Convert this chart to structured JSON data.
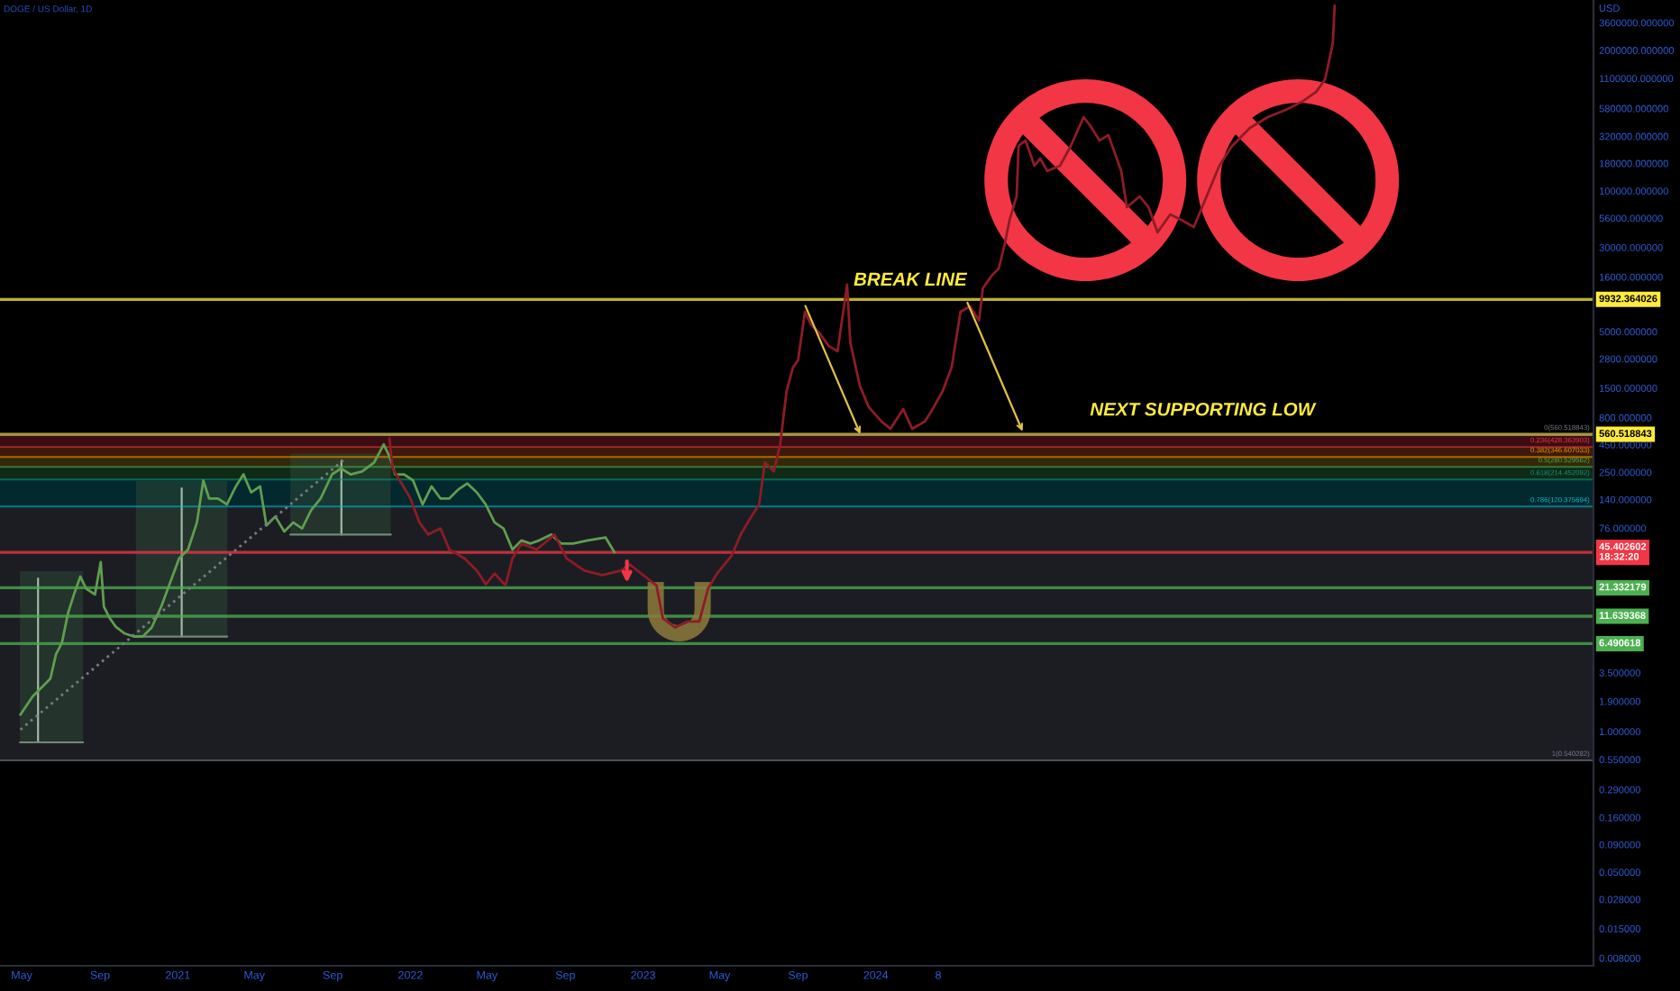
{
  "chart_data": {
    "type": "line",
    "title": "DOGE / US Dollar, 1D",
    "ylabel": "USD",
    "log": true,
    "xlim": [
      "2020-03-28",
      "2027-01-31"
    ],
    "xticks": [
      {
        "value": "2020-05-01",
        "label": "May"
      },
      {
        "value": "2020-09-01",
        "label": "Sep"
      },
      {
        "value": "2021-01-01",
        "label": "2021"
      },
      {
        "value": "2021-05-01",
        "label": "May"
      },
      {
        "value": "2021-09-01",
        "label": "Sep"
      },
      {
        "value": "2022-01-01",
        "label": "2022"
      },
      {
        "value": "2022-05-01",
        "label": "May"
      },
      {
        "value": "2022-09-01",
        "label": "Sep"
      },
      {
        "value": "2023-01-01",
        "label": "2023"
      },
      {
        "value": "2023-05-01",
        "label": "May"
      },
      {
        "value": "2023-09-01",
        "label": "Sep"
      },
      {
        "value": "2024-01-01",
        "label": "2024"
      },
      {
        "value": "2024-04-08",
        "label": "8"
      }
    ],
    "ylim": [
      0.0068,
      5840000
    ],
    "yticks": [
      {
        "value": 3600000,
        "label": "3600000.000000"
      },
      {
        "value": 2000000,
        "label": "2000000.000000"
      },
      {
        "value": 1100000,
        "label": "1100000.000000"
      },
      {
        "value": 580000,
        "label": "580000.000000"
      },
      {
        "value": 320000,
        "label": "320000.000000"
      },
      {
        "value": 180000,
        "label": "180000.000000"
      },
      {
        "value": 100000,
        "label": "100000.000000"
      },
      {
        "value": 56000,
        "label": "56000.000000"
      },
      {
        "value": 30000,
        "label": "30000.000000"
      },
      {
        "value": 16000,
        "label": "16000.000000"
      },
      {
        "value": 5000,
        "label": "5000.000000"
      },
      {
        "value": 2800,
        "label": "2800.000000"
      },
      {
        "value": 1500,
        "label": "1500.000000"
      },
      {
        "value": 800,
        "label": "800.000000"
      },
      {
        "value": 450,
        "label": "450.000000"
      },
      {
        "value": 250,
        "label": "250.000000"
      },
      {
        "value": 140,
        "label": "140.000000"
      },
      {
        "value": 76,
        "label": "76.000000"
      },
      {
        "value": 3.5,
        "label": "3.500000"
      },
      {
        "value": 1.9,
        "label": "1.900000"
      },
      {
        "value": 1,
        "label": "1.000000"
      },
      {
        "value": 0.55,
        "label": "0.550000"
      },
      {
        "value": 0.29,
        "label": "0.290000"
      },
      {
        "value": 0.16,
        "label": "0.160000"
      },
      {
        "value": 0.09,
        "label": "0.090000"
      },
      {
        "value": 0.05,
        "label": "0.050000"
      },
      {
        "value": 0.028,
        "label": "0.028000"
      },
      {
        "value": 0.015,
        "label": "0.015000"
      },
      {
        "value": 0.008,
        "label": "0.008000"
      }
    ],
    "series": [
      {
        "color": "#5f9e4f",
        "x": [
          "2020-04-29",
          "2020-05-18",
          "2020-06-01",
          "2020-06-15",
          "2020-06-24",
          "2020-07-03",
          "2020-07-13",
          "2020-07-22",
          "2020-08-01",
          "2020-08-10",
          "2020-08-24",
          "2020-09-02",
          "2020-09-07",
          "2020-09-16",
          "2020-09-26",
          "2020-10-10",
          "2020-10-24",
          "2020-11-07",
          "2020-11-21",
          "2020-12-06",
          "2020-12-20",
          "2021-01-03",
          "2021-01-17",
          "2021-01-31",
          "2021-02-10",
          "2021-02-19",
          "2021-03-05",
          "2021-03-19",
          "2021-04-02",
          "2021-04-14",
          "2021-04-26",
          "2021-05-10",
          "2021-05-20",
          "2021-06-03",
          "2021-06-17",
          "2021-07-01",
          "2021-07-15",
          "2021-07-29",
          "2021-08-13",
          "2021-08-31",
          "2021-09-14",
          "2021-09-29",
          "2021-10-17",
          "2021-11-05",
          "2021-11-20",
          "2021-11-29",
          "2021-12-08",
          "2021-12-22",
          "2022-01-05",
          "2022-01-20",
          "2022-02-03",
          "2022-02-17",
          "2022-03-03",
          "2022-03-17",
          "2022-03-31",
          "2022-04-15",
          "2022-04-29",
          "2022-05-13",
          "2022-05-27",
          "2022-06-10",
          "2022-06-24",
          "2022-07-08",
          "2022-07-22",
          "2022-08-10",
          "2022-08-25",
          "2022-09-13",
          "2022-10-06",
          "2022-11-03",
          "2022-11-17"
        ],
        "values": [
          1.43,
          2.1,
          2.54,
          3.08,
          5.21,
          6.56,
          12.6,
          18.5,
          27.1,
          21.0,
          18.5,
          36.9,
          14.3,
          11.2,
          9.26,
          8.04,
          7.56,
          7.56,
          9.16,
          14.3,
          23.9,
          39.8,
          48.2,
          85.8,
          210,
          143,
          143,
          126,
          185,
          239,
          163,
          185,
          80.4,
          97.3,
          70.8,
          85.8,
          75.5,
          111,
          143,
          239,
          271,
          239,
          254,
          308,
          452,
          351,
          239,
          239,
          210,
          126,
          185,
          143,
          143,
          173,
          197,
          163,
          126,
          85.8,
          75.5,
          48.2,
          58.5,
          54.7,
          58.5,
          66.3,
          54.7,
          54.7,
          58.5,
          62.4,
          45.4
        ]
      },
      {
        "color": "#8e1c26",
        "x": [
          "2021-11-29",
          "2021-12-04",
          "2022-01-01",
          "2022-01-15",
          "2022-01-29",
          "2022-02-17",
          "2022-03-03",
          "2022-03-27",
          "2022-04-15",
          "2022-04-29",
          "2022-05-13",
          "2022-05-30",
          "2022-06-10",
          "2022-06-24",
          "2022-07-18",
          "2022-08-15",
          "2022-09-03",
          "2022-10-01",
          "2022-10-29",
          "2022-11-27",
          "2022-12-11",
          "2023-01-04",
          "2023-01-22",
          "2023-02-01",
          "2023-02-20",
          "2023-03-11",
          "2023-03-30",
          "2023-04-13",
          "2023-04-27",
          "2023-05-20",
          "2023-06-03",
          "2023-06-17",
          "2023-07-02",
          "2023-07-11",
          "2023-07-25",
          "2023-08-04",
          "2023-08-14",
          "2023-08-24",
          "2023-09-01",
          "2023-09-12",
          "2023-09-21",
          "2023-10-05",
          "2023-10-19",
          "2023-11-02",
          "2023-11-17",
          "2023-11-22",
          "2023-12-07",
          "2023-12-21",
          "2024-01-10",
          "2024-01-24",
          "2024-02-13",
          "2024-02-27",
          "2024-03-18",
          "2024-04-01",
          "2024-04-15",
          "2024-04-29",
          "2024-05-13",
          "2024-05-28",
          "2024-06-11",
          "2024-06-17",
          "2024-07-01",
          "2024-07-12",
          "2024-07-21",
          "2024-07-29",
          "2024-08-09",
          "2024-08-12",
          "2024-08-23",
          "2024-09-06",
          "2024-09-15",
          "2024-09-26",
          "2024-10-16",
          "2024-11-02",
          "2024-11-22",
          "2024-12-03",
          "2024-12-17",
          "2024-12-31",
          "2025-01-20",
          "2025-01-29",
          "2025-02-18",
          "2025-03-04",
          "2025-03-18",
          "2025-04-07",
          "2025-04-24",
          "2025-05-14",
          "2025-06-03",
          "2025-06-23",
          "2025-07-13",
          "2025-08-10",
          "2025-09-07",
          "2025-10-05",
          "2025-11-02",
          "2025-11-22",
          "2025-12-06",
          "2025-12-12",
          "2025-12-18",
          "2025-12-21"
        ],
        "values": [
          515,
          271,
          143,
          85.8,
          66.3,
          75.5,
          48.2,
          39.8,
          30.8,
          23.0,
          28.9,
          22.4,
          39.8,
          54.7,
          48.2,
          66.3,
          39.8,
          30.8,
          27.9,
          30.8,
          35.1,
          27.1,
          22.4,
          11.1,
          9.16,
          10.4,
          10.4,
          21.0,
          28.9,
          42.5,
          66.3,
          91.5,
          126,
          308,
          254,
          452,
          1400,
          2330,
          2710,
          7640,
          5840,
          4820,
          3690,
          3290,
          13600,
          3980,
          1580,
          1000,
          736,
          631,
          962,
          631,
          736,
          1000,
          1410,
          2330,
          7640,
          8580,
          6310,
          12600,
          16500,
          19200,
          31600,
          54100,
          89100,
          261000,
          293000,
          171000,
          200000,
          153000,
          171000,
          261000,
          482000,
          398000,
          293000,
          329000,
          153000,
          70800,
          89100,
          70800,
          41400,
          60700,
          54100,
          46400,
          89100,
          171000,
          261000,
          383000,
          482000,
          562000,
          681000,
          826000,
          1080000,
          1580000,
          2330000,
          5200000
        ]
      },
      {
        "color": "#787b86",
        "line_style": "dotted",
        "x": [
          "2020-04-29",
          "2021-09-19"
        ],
        "values": [
          1.04,
          328
        ]
      }
    ],
    "bands": [
      {
        "axis": "y",
        "from": 428.363903,
        "to": 560.518843,
        "color": "#3a0d12"
      },
      {
        "axis": "y",
        "from": 346.607033,
        "to": 428.363903,
        "color": "#3e1a0c"
      },
      {
        "axis": "y",
        "from": 280.529562,
        "to": 346.607033,
        "color": "#33290a"
      },
      {
        "axis": "y",
        "from": 214.452092,
        "to": 280.529562,
        "color": "#0f2a17"
      },
      {
        "axis": "y",
        "from": 120.375694,
        "to": 214.452092,
        "color": "#03282d"
      },
      {
        "axis": "y",
        "from": 0.540282,
        "to": 120.375694,
        "color": "#1c1d22"
      }
    ],
    "ref_lines": [
      {
        "axis": "y",
        "value": 9932.364026,
        "label": "9932.364026",
        "color": "#ffeb3b"
      },
      {
        "axis": "y",
        "value": 560.518843,
        "label": "560.518843",
        "color": "#ffeb3b"
      },
      {
        "axis": "y",
        "value": 45.402602,
        "label": "45.402602\n18:32:20",
        "color": "#f23645"
      },
      {
        "axis": "y",
        "value": 21.332179,
        "label": "21.332179",
        "color": "#4caf50"
      },
      {
        "axis": "y",
        "value": 11.639368,
        "label": "11.639368",
        "color": "#4caf50"
      },
      {
        "axis": "y",
        "value": 6.490618,
        "label": "6.490618",
        "color": "#4caf50"
      },
      {
        "axis": "y",
        "value": 560.518843,
        "color": "#787b86"
      },
      {
        "axis": "y",
        "value": 428.363903,
        "color": "#f23645"
      },
      {
        "axis": "y",
        "value": 346.607033,
        "color": "#ff9800"
      },
      {
        "axis": "y",
        "value": 280.529562,
        "color": "#4caf50"
      },
      {
        "axis": "y",
        "value": 214.452092,
        "color": "#089981"
      },
      {
        "axis": "y",
        "value": 120.375694,
        "color": "#00bcd4"
      },
      {
        "axis": "y",
        "value": 0.540282,
        "color": "#787b86"
      }
    ],
    "annotations": [
      {
        "text": "BREAK LINE",
        "x": "2024-02-24",
        "y": 9932.364026
      },
      "NEXT SUPPORTING LOW",
      {
        "text": "0(560.518843)",
        "x": "2027-01-25",
        "y": 560.518843
      },
      {
        "text": "0.236(428.363903)",
        "x": "2027-01-25",
        "y": 428.363903
      },
      {
        "text": "0.382(346.607033)",
        "x": "2027-01-25",
        "y": 346.607033
      },
      {
        "text": "0.5(280.529562)",
        "x": "2027-01-25",
        "y": 280.529562
      },
      {
        "text": "0.618(214.452092)",
        "x": "2027-01-25",
        "y": 214.452092
      },
      {
        "text": "0.786(120.375694)",
        "x": "2027-01-25",
        "y": 120.375694
      },
      {
        "text": "1(0.540282)",
        "x": "2027-01-25",
        "y": 0.540282
      }
    ]
  }
}
